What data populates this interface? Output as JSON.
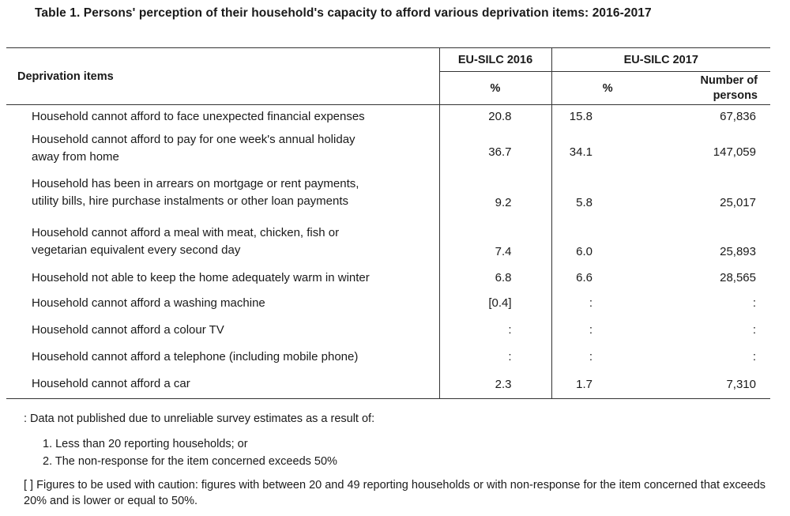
{
  "caption": "Table 1.  Persons' perception of their household's capacity to afford various deprivation items: 2016-2017",
  "header": {
    "items_label": "Deprivation items",
    "year1": "EU-SILC 2016",
    "year2": "EU-SILC 2017",
    "pct1": "%",
    "pct2": "%",
    "persons_line1": "Number of",
    "persons_line2": "persons"
  },
  "rows": [
    {
      "label_line1": "Household cannot afford to face unexpected financial expenses",
      "label_line2": "",
      "v2016": "20.8",
      "v2017": "15.8",
      "persons": "67,836"
    },
    {
      "label_line1": "Household cannot afford to pay for one week's annual holiday",
      "label_line2": "away from home",
      "v2016": "36.7",
      "v2017": "34.1",
      "persons": "147,059"
    },
    {
      "label_line1": "Household has been in arrears on mortgage or rent payments,",
      "label_line2": "utility bills, hire purchase instalments or other loan payments",
      "v2016": "9.2",
      "v2017": "5.8",
      "persons": "25,017"
    },
    {
      "label_line1": "Household cannot afford a meal with meat, chicken, fish or",
      "label_line2": "vegetarian equivalent every second day",
      "v2016": "7.4",
      "v2017": "6.0",
      "persons": "25,893"
    },
    {
      "label_line1": "Household not able to keep the home adequately warm in winter",
      "label_line2": "",
      "v2016": "6.8",
      "v2017": "6.6",
      "persons": "28,565"
    },
    {
      "label_line1": "Household cannot afford a washing machine",
      "label_line2": "",
      "v2016": "[0.4]",
      "v2017": ":",
      "persons": ":"
    },
    {
      "label_line1": "Household cannot afford a colour TV",
      "label_line2": "",
      "v2016": ":",
      "v2017": ":",
      "persons": ":"
    },
    {
      "label_line1": "Household cannot afford a telephone (including mobile phone)",
      "label_line2": "",
      "v2016": ":",
      "v2017": ":",
      "persons": ":"
    },
    {
      "label_line1": "Household cannot afford a car",
      "label_line2": "",
      "v2016": "2.3",
      "v2017": "1.7",
      "persons": "7,310"
    }
  ],
  "notes": {
    "lead": ": Data not published due to unreliable survey estimates as a result of:",
    "item1": "1.  Less than 20 reporting households; or",
    "item2": "2.  The non-response for the item concerned exceeds 50%",
    "caution": "[ ]  Figures to be used with caution: figures with between 20 and 49 reporting households or with non-response for the item concerned that exceeds 20% and is lower or equal to 50%."
  }
}
